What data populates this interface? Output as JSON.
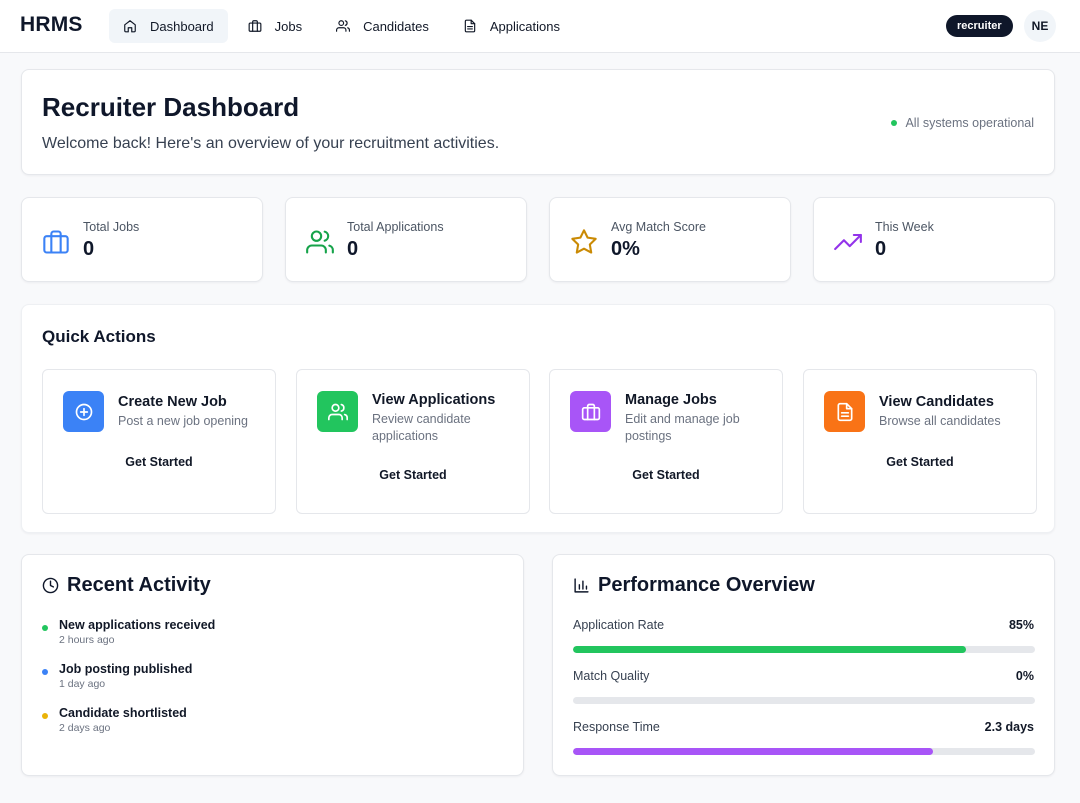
{
  "brand": "HRMS",
  "nav": [
    {
      "label": "Dashboard",
      "icon": "home-icon",
      "active": true
    },
    {
      "label": "Jobs",
      "icon": "briefcase-icon",
      "active": false
    },
    {
      "label": "Candidates",
      "icon": "users-icon",
      "active": false
    },
    {
      "label": "Applications",
      "icon": "file-text-icon",
      "active": false
    }
  ],
  "user": {
    "role": "recruiter",
    "initials": "NE"
  },
  "header": {
    "title": "Recruiter Dashboard",
    "subtitle": "Welcome back! Here's an overview of your recruitment activities.",
    "status": "All systems operational",
    "status_color": "#22c55e"
  },
  "stats": [
    {
      "label": "Total Jobs",
      "value": "0",
      "icon": "briefcase-icon",
      "color": "#3b82f6"
    },
    {
      "label": "Total Applications",
      "value": "0",
      "icon": "users-icon",
      "color": "#16a34a"
    },
    {
      "label": "Avg Match Score",
      "value": "0%",
      "icon": "star-icon",
      "color": "#ca8a04"
    },
    {
      "label": "This Week",
      "value": "0",
      "icon": "trending-up-icon",
      "color": "#9333ea"
    }
  ],
  "quick_actions": {
    "title": "Quick Actions",
    "items": [
      {
        "title": "Create New Job",
        "desc": "Post a new job opening",
        "button": "Get Started",
        "icon": "plus-circle-icon",
        "color": "#3b82f6"
      },
      {
        "title": "View Applications",
        "desc": "Review candidate applications",
        "button": "Get Started",
        "icon": "users-icon",
        "color": "#22c55e"
      },
      {
        "title": "Manage Jobs",
        "desc": "Edit and manage job postings",
        "button": "Get Started",
        "icon": "briefcase-icon",
        "color": "#a855f7"
      },
      {
        "title": "View Candidates",
        "desc": "Browse all candidates",
        "button": "Get Started",
        "icon": "file-text-icon",
        "color": "#f97316"
      }
    ]
  },
  "recent_activity": {
    "title": "Recent Activity",
    "icon": "clock-icon",
    "items": [
      {
        "title": "New applications received",
        "time": "2 hours ago",
        "color": "#22c55e"
      },
      {
        "title": "Job posting published",
        "time": "1 day ago",
        "color": "#3b82f6"
      },
      {
        "title": "Candidate shortlisted",
        "time": "2 days ago",
        "color": "#eab308"
      }
    ]
  },
  "performance": {
    "title": "Performance Overview",
    "icon": "bar-chart-icon",
    "metrics": [
      {
        "label": "Application Rate",
        "value": "85%",
        "progress": 0.85,
        "color": "#22c55e"
      },
      {
        "label": "Match Quality",
        "value": "0%",
        "progress": 0.0,
        "color": "#3b82f6"
      },
      {
        "label": "Response Time",
        "value": "2.3 days",
        "progress": 0.78,
        "color": "#a855f7"
      }
    ]
  }
}
